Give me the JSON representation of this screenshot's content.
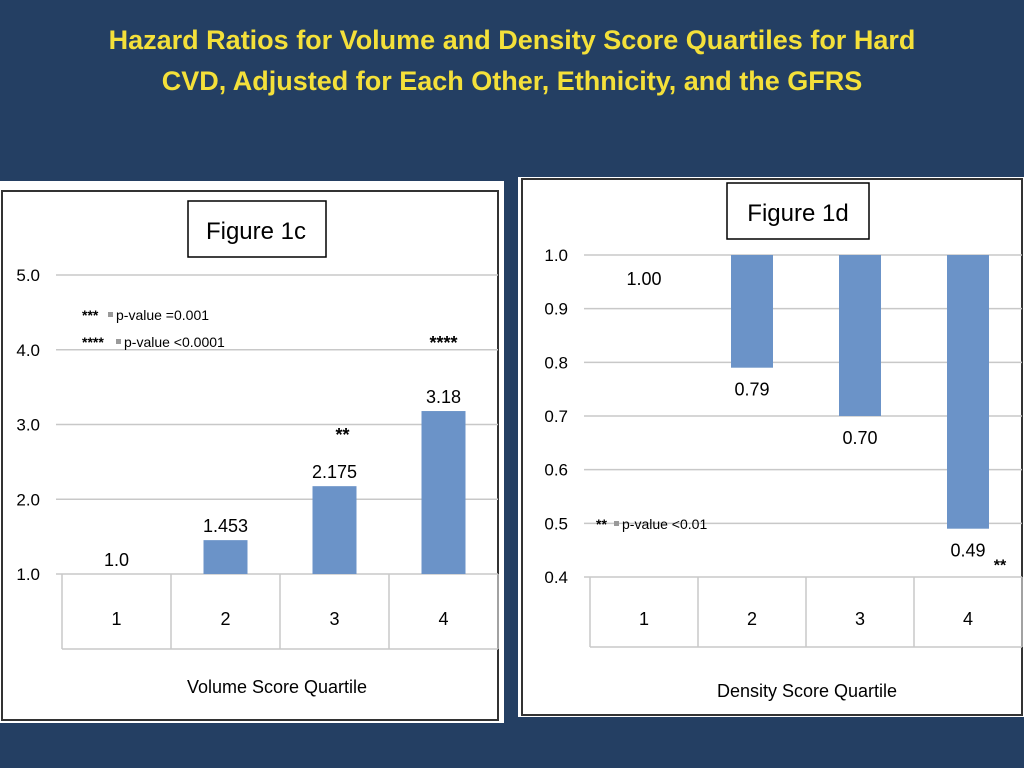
{
  "slide": {
    "title_line1": "Hazard Ratios for Volume and Density Score Quartiles for Hard",
    "title_line2": "CVD, Adjusted for Each Other, Ethnicity, and the GFRS"
  },
  "colors": {
    "background": "#243f63",
    "title": "#f4e03a",
    "bar": "#6b93c8",
    "grid": "#c8c8c8"
  },
  "chart_data": [
    {
      "type": "bar",
      "figure_label": "Figure 1c",
      "categories": [
        "1",
        "2",
        "3",
        "4"
      ],
      "values": [
        1.0,
        1.453,
        2.175,
        3.18
      ],
      "value_labels": [
        "1.0",
        "1.453",
        "2.175",
        "3.18"
      ],
      "significance_marks": [
        "",
        "",
        "**",
        "****"
      ],
      "ylim": [
        1.0,
        5.0
      ],
      "yticks": [
        "1.0",
        "2.0",
        "3.0",
        "4.0",
        "5.0"
      ],
      "xlabel": "Volume Score Quartile",
      "ylabel": "",
      "grid": true,
      "legend_placement": "top-left",
      "legend": [
        {
          "marker": "***",
          "text": "p-value =0.001"
        },
        {
          "marker": "****",
          "text": "p-value <0.0001"
        }
      ]
    },
    {
      "type": "bar",
      "figure_label": "Figure 1d",
      "categories": [
        "1",
        "2",
        "3",
        "4"
      ],
      "values": [
        1.0,
        0.79,
        0.7,
        0.49
      ],
      "value_labels": [
        "1.00",
        "0.79",
        "0.70",
        "0.49"
      ],
      "significance_marks": [
        "",
        "",
        "",
        "**"
      ],
      "ylim": [
        0.4,
        1.0
      ],
      "yticks": [
        "0.4",
        "0.5",
        "0.6",
        "0.7",
        "0.8",
        "0.9",
        "1.0"
      ],
      "xlabel": "Density Score Quartile",
      "ylabel": "",
      "grid": true,
      "legend_placement": "middle-left",
      "legend": [
        {
          "marker": "**",
          "text": "p-value <0.01"
        }
      ]
    }
  ]
}
